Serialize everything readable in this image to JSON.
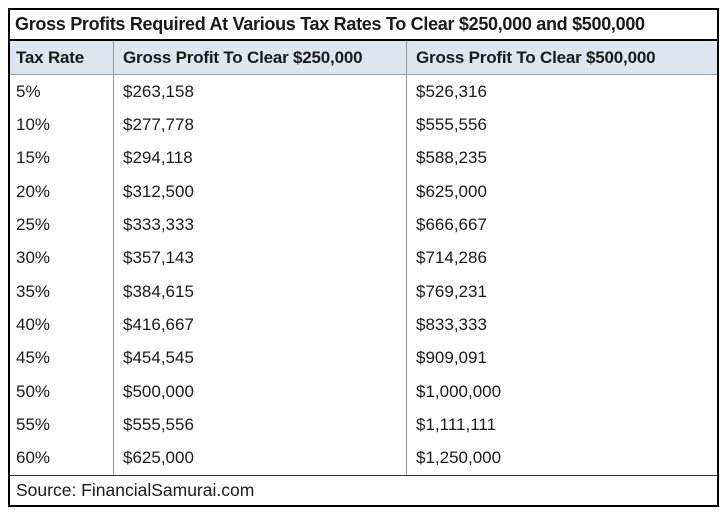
{
  "title": "Gross Profits Required At Various Tax Rates To Clear $250,000 and $500,000",
  "source": "Source: FinancialSamurai.com",
  "colors": {
    "header_bg": "#dce6f1",
    "outer_border": "#000000",
    "column_divider": "#999999",
    "text": "#1a1a1a"
  },
  "chart_data": {
    "type": "table",
    "title": "Gross Profits Required At Various Tax Rates To Clear $250,000 and $500,000",
    "columns": [
      "Tax Rate",
      "Gross Profit To Clear $250,000",
      "Gross Profit To Clear $500,000"
    ],
    "rows": [
      [
        "5%",
        "$263,158",
        "$526,316"
      ],
      [
        "10%",
        "$277,778",
        "$555,556"
      ],
      [
        "15%",
        "$294,118",
        "$588,235"
      ],
      [
        "20%",
        "$312,500",
        "$625,000"
      ],
      [
        "25%",
        "$333,333",
        "$666,667"
      ],
      [
        "30%",
        "$357,143",
        "$714,286"
      ],
      [
        "35%",
        "$384,615",
        "$769,231"
      ],
      [
        "40%",
        "$416,667",
        "$833,333"
      ],
      [
        "45%",
        "$454,545",
        "$909,091"
      ],
      [
        "50%",
        "$500,000",
        "$1,000,000"
      ],
      [
        "55%",
        "$555,556",
        "$1,111,111"
      ],
      [
        "60%",
        "$625,000",
        "$1,250,000"
      ]
    ],
    "source_note": "Source: FinancialSamurai.com",
    "layout": {
      "header_shaded": true,
      "row_dividers": false,
      "column_dividers": true
    }
  }
}
